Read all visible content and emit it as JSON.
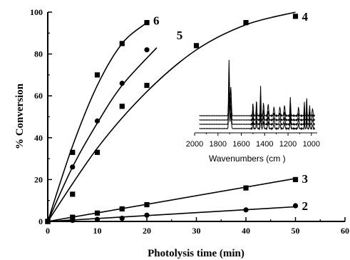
{
  "chart_data": [
    {
      "type": "scatter",
      "xlabel": "Photolysis time (min)",
      "ylabel": "% Conversion",
      "xlim": [
        0,
        60
      ],
      "ylim": [
        0,
        100
      ],
      "x_ticks": [
        "0",
        "10",
        "20",
        "30",
        "40",
        "50",
        "60"
      ],
      "y_ticks": [
        "0",
        "20",
        "40",
        "60",
        "80",
        "100"
      ],
      "grid": false,
      "series": [
        {
          "name": "2",
          "marker": "circle",
          "x": [
            0,
            5,
            10,
            15,
            20,
            40,
            50
          ],
          "y": [
            0,
            0.5,
            1,
            1.5,
            3,
            5.5,
            7.5
          ],
          "fit": [
            [
              0,
              0
            ],
            [
              50,
              7
            ]
          ]
        },
        {
          "name": "3",
          "marker": "square",
          "x": [
            0,
            5,
            10,
            15,
            20,
            40,
            50
          ],
          "y": [
            0,
            2,
            4,
            6,
            8,
            16,
            20
          ],
          "fit": [
            [
              0,
              0
            ],
            [
              50,
              20.5
            ]
          ]
        },
        {
          "name": "4",
          "marker": "square",
          "x": [
            0,
            5,
            10,
            15,
            20,
            30,
            40,
            50
          ],
          "y": [
            0,
            13,
            33,
            55,
            65,
            84,
            95,
            98
          ],
          "fit": [
            [
              0,
              0
            ],
            [
              10,
              35
            ],
            [
              20,
              62
            ],
            [
              30,
              82
            ],
            [
              40,
              94
            ],
            [
              50,
              100
            ]
          ]
        },
        {
          "name": "5",
          "marker": "circle",
          "x": [
            0,
            5,
            10,
            15,
            20
          ],
          "y": [
            0,
            26,
            48,
            66,
            82
          ],
          "fit": [
            [
              0,
              0
            ],
            [
              5,
              26
            ],
            [
              10,
              47
            ],
            [
              15,
              65
            ],
            [
              22,
              83
            ]
          ]
        },
        {
          "name": "6",
          "marker": "square",
          "x": [
            0,
            5,
            10,
            15,
            20
          ],
          "y": [
            0,
            33,
            70,
            85,
            95
          ],
          "fit": [
            [
              0,
              0
            ],
            [
              5,
              36
            ],
            [
              10,
              65
            ],
            [
              15,
              85
            ],
            [
              20,
              95
            ]
          ]
        }
      ]
    },
    {
      "type": "line",
      "xlabel": "Wavenumbers (cm    )",
      "xlim": [
        2000,
        950
      ],
      "x_reversed": true,
      "x_ticks": [
        "2000",
        "1800",
        "1600",
        "1400",
        "1200",
        "1000"
      ],
      "series": [
        {
          "offset": 0
        },
        {
          "offset": 1
        },
        {
          "offset": 2
        },
        {
          "offset": 3
        }
      ]
    }
  ]
}
